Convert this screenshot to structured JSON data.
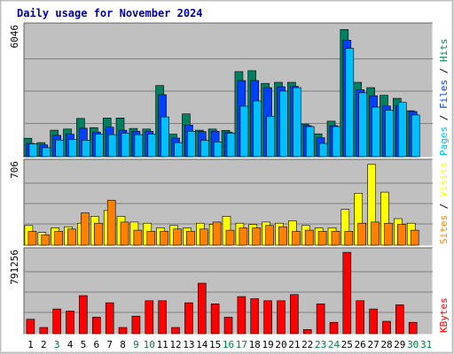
{
  "chart_data": {
    "type": "bar",
    "title": "Daily usage for November 2024",
    "days": [
      "1",
      "2",
      "3",
      "4",
      "5",
      "6",
      "7",
      "8",
      "9",
      "10",
      "11",
      "12",
      "13",
      "14",
      "15",
      "16",
      "17",
      "18",
      "19",
      "20",
      "21",
      "22",
      "23",
      "24",
      "25",
      "26",
      "27",
      "28",
      "29",
      "30",
      "31"
    ],
    "weekend_days": [
      "3",
      "9",
      "10",
      "16",
      "17",
      "23",
      "24",
      "30",
      "31"
    ],
    "colors": {
      "title": "#0000a0",
      "background": "#c0c0c0",
      "grid": "#808080",
      "pages": "#00c0ff",
      "files": "#0040ff",
      "hits": "#008060",
      "sites": "#ff8000",
      "visits": "#ffff00",
      "kbytes": "#ff0000",
      "weekday_label": "#000000",
      "weekend_label": "#008040"
    },
    "panels": [
      {
        "id": "requests",
        "max_label": "6046",
        "ymax": 6046,
        "legend": [
          {
            "text": "Pages",
            "color": "#00c0ff"
          },
          {
            "text": " / ",
            "color": "#000000"
          },
          {
            "text": "Files",
            "color": "#0040ff"
          },
          {
            "text": " / ",
            "color": "#000000"
          },
          {
            "text": "Hits",
            "color": "#008060"
          }
        ],
        "series": [
          {
            "name": "Hits",
            "color": "#008060",
            "values": [
              860,
              660,
              1240,
              1290,
              1790,
              1360,
              1810,
              1810,
              1320,
              1290,
              3330,
              1050,
              2000,
              1240,
              1290,
              1230,
              3980,
              4020,
              3430,
              3480,
              3480,
              1530,
              1070,
              1660,
              5950,
              3480,
              3230,
              2870,
              2730,
              2150
            ]
          },
          {
            "name": "Files",
            "color": "#0040ff",
            "values": [
              620,
              550,
              1000,
              1050,
              1330,
              1150,
              1380,
              1240,
              1190,
              1190,
              2900,
              870,
              1480,
              1170,
              1190,
              1150,
              3560,
              3560,
              3230,
              3270,
              3290,
              1450,
              890,
              1450,
              5450,
              3130,
              2850,
              2370,
              2390,
              2110
            ]
          },
          {
            "name": "Pages",
            "color": "#00c0ff",
            "values": [
              600,
              420,
              780,
              800,
              770,
              1050,
              1030,
              1100,
              1030,
              1050,
              1860,
              660,
              1190,
              760,
              690,
              1100,
              2360,
              2610,
              1890,
              3070,
              3230,
              1410,
              620,
              1410,
              5070,
              2990,
              2320,
              2180,
              2540,
              1950
            ]
          }
        ]
      },
      {
        "id": "visitors",
        "max_label": "706",
        "ymax": 706,
        "legend": [
          {
            "text": "Sites",
            "color": "#ff8000"
          },
          {
            "text": " / ",
            "color": "#000000"
          },
          {
            "text": "Visits",
            "color": "#ffff00"
          }
        ],
        "series": [
          {
            "name": "Visits",
            "color": "#ffff00",
            "values": [
              170,
              110,
              150,
              160,
              190,
              250,
              300,
              250,
              200,
              190,
              150,
              170,
              150,
              190,
              180,
              250,
              190,
              180,
              200,
              190,
              210,
              170,
              150,
              150,
              310,
              450,
              700,
              460,
              230,
              190
            ]
          },
          {
            "name": "Sites",
            "color": "#ff8000",
            "values": [
              120,
              90,
              120,
              140,
              280,
              190,
              390,
              200,
              130,
              120,
              120,
              140,
              120,
              140,
              200,
              130,
              150,
              150,
              170,
              160,
              120,
              130,
              120,
              120,
              120,
              190,
              200,
              190,
              180,
              130
            ]
          }
        ]
      },
      {
        "id": "kbytes",
        "max_label": "791256",
        "ymax": 791256,
        "legend": [
          {
            "text": "KBytes",
            "color": "#ff0000"
          }
        ],
        "series": [
          {
            "name": "KBytes",
            "color": "#ff0000",
            "values": [
              140000,
              60000,
              240000,
              220000,
              370000,
              160000,
              300000,
              60000,
              170000,
              320000,
              320000,
              60000,
              300000,
              490000,
              290000,
              160000,
              360000,
              340000,
              320000,
              320000,
              380000,
              40000,
              290000,
              110000,
              790000,
              320000,
              240000,
              120000,
              280000,
              110000
            ]
          }
        ]
      }
    ]
  }
}
